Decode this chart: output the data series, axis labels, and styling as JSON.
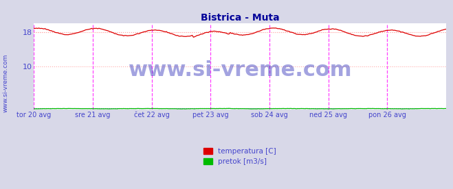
{
  "title": "Bistrica - Muta",
  "title_color": "#000099",
  "title_fontsize": 10,
  "bg_color": "#d8d8e8",
  "plot_bg_color": "#ffffff",
  "yticks": [
    10,
    18
  ],
  "ylim": [
    0,
    20
  ],
  "xlim": [
    0,
    336
  ],
  "x_tick_positions": [
    0,
    48,
    96,
    144,
    192,
    240,
    288
  ],
  "x_tick_labels": [
    "tor 20 avg",
    "sre 21 avg",
    "čet 22 avg",
    "pet 23 avg",
    "sob 24 avg",
    "ned 25 avg",
    "pon 26 avg"
  ],
  "temp_color": "#dd0000",
  "flow_color": "#00bb00",
  "temp_mean_color": "#ffaaaa",
  "flow_mean_color": "#0000cc",
  "vline_color_major": "#ff00ff",
  "vline_color_minor": "#ffaaff",
  "hgrid_color": "#ffaaaa",
  "vgrid_color": "#ffddff",
  "tick_color": "#4444cc",
  "watermark_color": "#3333bb",
  "watermark_text": "www.si-vreme.com",
  "watermark_fontsize": 22,
  "watermark_alpha": 0.45,
  "legend_labels": [
    "temperatura [C]",
    "pretok [m3/s]"
  ],
  "legend_colors": [
    "#dd0000",
    "#00bb00"
  ],
  "n_points": 337,
  "temp_base": 18.0,
  "temp_amplitude": 0.75,
  "temp_period": 48,
  "flow_near_zero": 0.35,
  "sidebar_text": "www.si-vreme.com",
  "sidebar_color": "#4444cc",
  "sidebar_fontsize": 6.5,
  "arrow_color": "#cc0000"
}
